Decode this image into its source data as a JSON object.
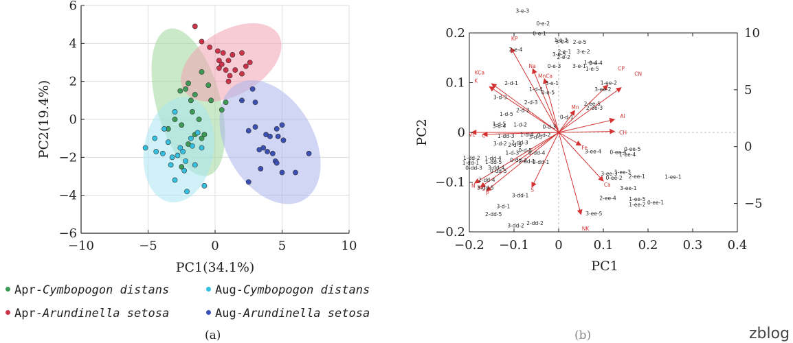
{
  "chart_data": [
    {
      "type": "scatter",
      "title": "",
      "xlabel": "PC1(34.1%)",
      "ylabel": "PC2(19.4%)",
      "xlim": [
        -10,
        10
      ],
      "ylim": [
        -6,
        6
      ],
      "xticks": [
        -10,
        -5,
        0,
        5,
        10
      ],
      "yticks": [
        -6,
        -4,
        -2,
        0,
        2,
        4,
        6
      ],
      "grid": true,
      "series": [
        {
          "name": "Apr-Cymbopogon distans",
          "color": "#3d9a55",
          "ellipse_color": "#9fd79a",
          "ellipse": {
            "cx": -2.0,
            "cy": 0.9,
            "rx": 2.4,
            "ry": 4.0,
            "angle_deg": -15
          },
          "points": [
            [
              -2.0,
              1.9
            ],
            [
              -1.0,
              2.5
            ],
            [
              -2.2,
              1.6
            ],
            [
              -1.5,
              1.3
            ],
            [
              -0.5,
              1.8
            ],
            [
              0.5,
              0.5
            ],
            [
              0.8,
              0.9
            ],
            [
              -1.8,
              1.0
            ],
            [
              -2.6,
              1.5
            ],
            [
              -1.7,
              0.4
            ],
            [
              -0.3,
              1.0
            ],
            [
              -1.2,
              0.0
            ],
            [
              -0.8,
              -0.8
            ],
            [
              -1.5,
              -0.8
            ],
            [
              -2.5,
              -0.3
            ],
            [
              -3.0,
              0.0
            ],
            [
              -3.5,
              -0.5
            ],
            [
              -2.0,
              -1.3
            ],
            [
              -1.0,
              -1.0
            ],
            [
              -2.5,
              -2.5
            ]
          ]
        },
        {
          "name": "Apr-Arundinella setosa",
          "color": "#cc3348",
          "ellipse_color": "#f0a2b3",
          "ellipse": {
            "cx": 1.2,
            "cy": 3.0,
            "rx": 4.1,
            "ry": 1.7,
            "angle_deg": -30
          },
          "points": [
            [
              -1.5,
              4.9
            ],
            [
              -1.0,
              4.1
            ],
            [
              0.2,
              3.6
            ],
            [
              0.3,
              3.1
            ],
            [
              0.6,
              3.5
            ],
            [
              0.5,
              2.9
            ],
            [
              1.0,
              3.1
            ],
            [
              1.3,
              3.4
            ],
            [
              1.5,
              2.6
            ],
            [
              2.0,
              3.5
            ],
            [
              2.3,
              2.8
            ],
            [
              2.6,
              3.0
            ],
            [
              1.1,
              2.3
            ],
            [
              0.8,
              2.6
            ],
            [
              0.3,
              2.7
            ],
            [
              2.0,
              2.4
            ],
            [
              -0.4,
              3.8
            ],
            [
              1.0,
              2.0
            ]
          ]
        },
        {
          "name": "Aug-Cymbopogon distans",
          "color": "#35c0e0",
          "ellipse_color": "#a8e6f1",
          "ellipse": {
            "cx": -2.7,
            "cy": -1.6,
            "rx": 2.6,
            "ry": 2.8,
            "angle_deg": 10
          },
          "points": [
            [
              -5.2,
              -1.5
            ],
            [
              -4.5,
              -1.0
            ],
            [
              -4.4,
              -1.7
            ],
            [
              -3.9,
              -1.8
            ],
            [
              -3.5,
              -1.2
            ],
            [
              -3.3,
              -2.4
            ],
            [
              -3.2,
              -2.0
            ],
            [
              -3.0,
              -3.2
            ],
            [
              -2.8,
              -1.9
            ],
            [
              -2.6,
              -1.5
            ],
            [
              -2.4,
              -1.7
            ],
            [
              -2.2,
              -2.2
            ],
            [
              -2.3,
              -2.7
            ],
            [
              -2.1,
              -3.8
            ],
            [
              -1.8,
              -1.0
            ],
            [
              -1.7,
              -1.4
            ],
            [
              -1.3,
              -0.7
            ],
            [
              -1.0,
              -1.5
            ],
            [
              -0.8,
              -3.5
            ],
            [
              -1.5,
              -2.4
            ],
            [
              -3.8,
              -0.5
            ],
            [
              -3.0,
              0.4
            ]
          ]
        },
        {
          "name": "Aug-Arundinella setosa",
          "color": "#3c50b4",
          "ellipse_color": "#aab5ea",
          "ellipse": {
            "cx": 4.1,
            "cy": -1.2,
            "rx": 5.0,
            "ry": 2.3,
            "angle_deg": 60
          },
          "points": [
            [
              2.0,
              1.0
            ],
            [
              2.8,
              1.6
            ],
            [
              3.0,
              0.9
            ],
            [
              2.5,
              -0.6
            ],
            [
              3.0,
              -0.4
            ],
            [
              3.8,
              -0.8
            ],
            [
              4.1,
              -0.9
            ],
            [
              4.6,
              -0.5
            ],
            [
              4.7,
              -0.9
            ],
            [
              5.0,
              -0.3
            ],
            [
              5.1,
              -1.1
            ],
            [
              3.3,
              -1.6
            ],
            [
              3.6,
              -1.5
            ],
            [
              3.9,
              -1.7
            ],
            [
              4.3,
              -1.8
            ],
            [
              3.4,
              -2.6
            ],
            [
              4.5,
              -2.2
            ],
            [
              4.6,
              -2.3
            ],
            [
              5.0,
              -2.8
            ],
            [
              6.0,
              -2.8
            ],
            [
              7.0,
              -1.8
            ],
            [
              2.5,
              -3.3
            ]
          ]
        }
      ],
      "legend": [
        {
          "color": "#3d9a55",
          "prefix": "Apr-",
          "species": "Cymbopogon distans"
        },
        {
          "color": "#35c0e0",
          "prefix": "Aug-",
          "species": "Cymbopogon distans"
        },
        {
          "color": "#cc3348",
          "prefix": "Apr-",
          "species": "Arundinella setosa"
        },
        {
          "color": "#3c50b4",
          "prefix": "Aug-",
          "species": "Arundinella setosa"
        }
      ],
      "caption": "(a)"
    },
    {
      "type": "scatter",
      "subtype": "biplot",
      "title": "",
      "xlabel": "PC1",
      "ylabel": "PC2",
      "xlim": [
        -0.2,
        0.4
      ],
      "ylim": [
        -0.2,
        0.2
      ],
      "xticks": [
        -0.2,
        -0.1,
        0,
        0.1,
        0.2,
        0.3,
        0.4
      ],
      "xtick_labels": [
        "−0.2",
        "−0.1",
        "0",
        "0.1",
        "0.2",
        "0.3",
        "0.4"
      ],
      "yticks": [
        -0.2,
        -0.1,
        0,
        0.1,
        0.2
      ],
      "ytick_labels": [
        "−0.2",
        "−0.1",
        "0",
        "0.1",
        "0.2"
      ],
      "y2lim": [
        -7.5,
        10
      ],
      "y2ticks": [
        -5,
        0,
        5,
        10
      ],
      "grid": false,
      "vector_color": "#d23232",
      "vectors": [
        {
          "name": "KP",
          "x": -0.107,
          "y": 0.17,
          "lx": -0.099,
          "ly": 0.189
        },
        {
          "name": "Na",
          "x": -0.058,
          "y": 0.128,
          "lx": -0.059,
          "ly": 0.134
        },
        {
          "name": "MnCa",
          "x": -0.032,
          "y": 0.108,
          "lx": -0.03,
          "ly": 0.114
        },
        {
          "name": "KCa",
          "x": -0.15,
          "y": 0.098,
          "lx": -0.177,
          "ly": 0.121
        },
        {
          "name": "K",
          "x": -0.155,
          "y": 0.092,
          "lx": -0.185,
          "ly": 0.104
        },
        {
          "name": "Vc",
          "x": -0.195,
          "y": 0,
          "lx": -0.194,
          "ly": -0.004
        },
        {
          "name": "C",
          "x": -0.17,
          "y": -0.004,
          "lx": -0.168,
          "ly": -0.006
        },
        {
          "name": "N",
          "x": -0.188,
          "y": -0.102,
          "lx": -0.191,
          "ly": -0.107
        },
        {
          "name": "Mg",
          "x": -0.175,
          "y": -0.11,
          "lx": -0.173,
          "ly": -0.111
        },
        {
          "name": "P",
          "x": -0.162,
          "y": -0.118,
          "lx": -0.159,
          "ly": -0.122
        },
        {
          "name": "S",
          "x": -0.06,
          "y": -0.11,
          "lx": -0.059,
          "ly": -0.115
        },
        {
          "name": "NK",
          "x": 0.05,
          "y": -0.165,
          "lx": 0.06,
          "ly": -0.193
        },
        {
          "name": "Fe",
          "x": 0.05,
          "y": -0.026,
          "lx": 0.058,
          "ly": -0.03
        },
        {
          "name": "Ca",
          "x": 0.1,
          "y": -0.098,
          "lx": 0.109,
          "ly": -0.105
        },
        {
          "name": "Al",
          "x": 0.125,
          "y": 0.026,
          "lx": 0.143,
          "ly": 0.033
        },
        {
          "name": "CH",
          "x": 0.125,
          "y": 0.002,
          "lx": 0.144,
          "ly": 0.0
        },
        {
          "name": "CP",
          "x": 0.11,
          "y": 0.095,
          "lx": 0.14,
          "ly": 0.129
        },
        {
          "name": "CN",
          "x": 0.14,
          "y": 0.09,
          "lx": 0.178,
          "ly": 0.118
        },
        {
          "name": "Mn",
          "x": 0.036,
          "y": 0.044,
          "lx": 0.037,
          "ly": 0.051
        }
      ],
      "sample_labels": [
        {
          "t": "3-e-3",
          "x": -0.081,
          "y": 0.245
        },
        {
          "t": "0-e-2",
          "x": -0.035,
          "y": 0.219
        },
        {
          "t": "0-e-1",
          "x": -0.043,
          "y": 0.199
        },
        {
          "t": "2-e-4",
          "x": -0.096,
          "y": 0.167
        },
        {
          "t": "1-e-3",
          "x": 0.005,
          "y": 0.186
        },
        {
          "t": "3-e-4",
          "x": 0.008,
          "y": 0.183
        },
        {
          "t": "2-e-5",
          "x": 0.047,
          "y": 0.182
        },
        {
          "t": "3-e-2",
          "x": 0.055,
          "y": 0.163
        },
        {
          "t": "2-e-1",
          "x": 0.013,
          "y": 0.163
        },
        {
          "t": "3-e-5",
          "x": 0.001,
          "y": 0.157
        },
        {
          "t": "2-e-2",
          "x": 0.011,
          "y": 0.152
        },
        {
          "t": "1-e-4",
          "x": 0.072,
          "y": 0.141
        },
        {
          "t": "0-e-4",
          "x": 0.083,
          "y": 0.14
        },
        {
          "t": "0-e-3",
          "x": -0.01,
          "y": 0.134
        },
        {
          "t": "3-e-1",
          "x": 0.046,
          "y": 0.134
        },
        {
          "t": "1-e-5",
          "x": 0.075,
          "y": 0.128
        },
        {
          "t": "3-e-1",
          "x": -0.015,
          "y": 0.099
        },
        {
          "t": "2-d-1",
          "x": -0.106,
          "y": 0.099
        },
        {
          "t": "1-d-4",
          "x": -0.051,
          "y": 0.087
        },
        {
          "t": "0-e-5",
          "x": -0.024,
          "y": 0.081
        },
        {
          "t": "3-d-3",
          "x": -0.131,
          "y": 0.071
        },
        {
          "t": "2-d-3",
          "x": -0.062,
          "y": 0.061
        },
        {
          "t": "2-d-2",
          "x": -0.08,
          "y": 0.045
        },
        {
          "t": "1-d-5",
          "x": -0.117,
          "y": 0.037
        },
        {
          "t": "1-d-5",
          "x": -0.133,
          "y": 0.017
        },
        {
          "t": "1-d-2",
          "x": -0.086,
          "y": 0.016
        },
        {
          "t": "3-d-4",
          "x": -0.133,
          "y": 0.013
        },
        {
          "t": "0-d-3",
          "x": -0.021,
          "y": 0.012
        },
        {
          "t": "0-d-1",
          "x": 0.018,
          "y": 0.031
        },
        {
          "t": "1-dd-3",
          "x": -0.118,
          "y": -0.007
        },
        {
          "t": "1-d-4",
          "x": -0.071,
          "y": -0.004
        },
        {
          "t": "0-d-2",
          "x": -0.033,
          "y": -0.005
        },
        {
          "t": "3-d-5",
          "x": -0.052,
          "y": -0.009
        },
        {
          "t": "3-d-2",
          "x": -0.131,
          "y": -0.022
        },
        {
          "t": "2-dd-3",
          "x": -0.087,
          "y": -0.02
        },
        {
          "t": "2-d-5",
          "x": -0.098,
          "y": -0.025
        },
        {
          "t": "0-d-5",
          "x": -0.075,
          "y": -0.036
        },
        {
          "t": "1-d-3",
          "x": -0.104,
          "y": -0.041
        },
        {
          "t": "0-dd-4",
          "x": -0.049,
          "y": -0.041
        },
        {
          "t": "1-dd-2",
          "x": -0.195,
          "y": -0.051
        },
        {
          "t": "1-dd-4",
          "x": -0.147,
          "y": -0.052
        },
        {
          "t": "1-dd-1",
          "x": -0.197,
          "y": -0.061
        },
        {
          "t": "1-dd-5",
          "x": -0.146,
          "y": -0.059
        },
        {
          "t": "0-dd-2",
          "x": -0.09,
          "y": -0.055
        },
        {
          "t": "2-dd-1",
          "x": -0.071,
          "y": -0.058
        },
        {
          "t": "0-dd-1",
          "x": -0.04,
          "y": -0.059
        },
        {
          "t": "0-dd-3",
          "x": -0.19,
          "y": -0.071
        },
        {
          "t": "3-dd-4",
          "x": -0.14,
          "y": -0.07
        },
        {
          "t": "0-dd-5",
          "x": -0.135,
          "y": -0.077
        },
        {
          "t": "2-dd-4",
          "x": -0.161,
          "y": -0.095
        },
        {
          "t": "3-dd-5",
          "x": -0.164,
          "y": -0.111
        },
        {
          "t": "3-dd-1",
          "x": -0.086,
          "y": -0.126
        },
        {
          "t": "3-d-1",
          "x": -0.124,
          "y": -0.148
        },
        {
          "t": "2-dd-5",
          "x": -0.146,
          "y": -0.164
        },
        {
          "t": "2-dd-2",
          "x": -0.053,
          "y": -0.182
        },
        {
          "t": "3-dd-2",
          "x": -0.096,
          "y": -0.187
        },
        {
          "t": "3-ee-2",
          "x": 0.099,
          "y": 0.087
        },
        {
          "t": "1-ee-2",
          "x": 0.112,
          "y": 0.1
        },
        {
          "t": "2-ee-5",
          "x": 0.075,
          "y": 0.058
        },
        {
          "t": "2-ee-3",
          "x": 0.08,
          "y": 0.05
        },
        {
          "t": "3-ee-4",
          "x": 0.077,
          "y": -0.038
        },
        {
          "t": "0-ee-4",
          "x": 0.133,
          "y": -0.039
        },
        {
          "t": "0-ee-5",
          "x": 0.165,
          "y": -0.033
        },
        {
          "t": "1-ee-4",
          "x": 0.154,
          "y": -0.044
        },
        {
          "t": "3-ee-3",
          "x": 0.113,
          "y": -0.083
        },
        {
          "t": "0-ee-2",
          "x": 0.124,
          "y": -0.091
        },
        {
          "t": "1-ee-3",
          "x": 0.143,
          "y": -0.079
        },
        {
          "t": "2-ee-1",
          "x": 0.175,
          "y": -0.088
        },
        {
          "t": "3-ee-1",
          "x": 0.156,
          "y": -0.112
        },
        {
          "t": "2-ee-4",
          "x": 0.11,
          "y": -0.132
        },
        {
          "t": "1-ee-5",
          "x": 0.176,
          "y": -0.134
        },
        {
          "t": "1-ee-2",
          "x": 0.176,
          "y": -0.145
        },
        {
          "t": "0-ee-1",
          "x": 0.217,
          "y": -0.141
        },
        {
          "t": "1-ee-1",
          "x": 0.256,
          "y": -0.089
        },
        {
          "t": "3-ee-5",
          "x": 0.079,
          "y": -0.163
        }
      ],
      "caption": "(b)"
    }
  ],
  "watermark": "zblog"
}
